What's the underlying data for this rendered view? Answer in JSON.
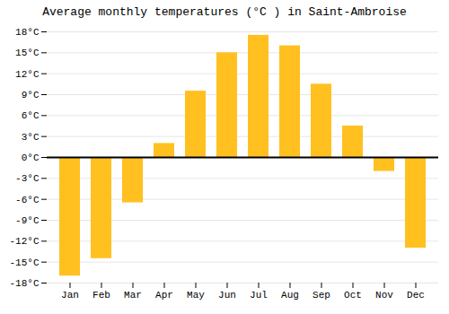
{
  "chart_data": {
    "type": "bar",
    "title": "Average monthly temperatures (°C ) in Saint-Ambroise",
    "categories": [
      "Jan",
      "Feb",
      "Mar",
      "Apr",
      "May",
      "Jun",
      "Jul",
      "Aug",
      "Sep",
      "Oct",
      "Nov",
      "Dec"
    ],
    "values": [
      -17,
      -14.5,
      -6.5,
      2,
      9.5,
      15,
      17.5,
      16,
      10.5,
      4.5,
      -2,
      -13
    ],
    "color": "#FFC020",
    "ylim": [
      -18,
      18
    ],
    "yticks": [
      {
        "value": -18,
        "label": "-18°C"
      },
      {
        "value": -15,
        "label": "-15°C"
      },
      {
        "value": -12,
        "label": "-12°C"
      },
      {
        "value": -9,
        "label": "-9°C"
      },
      {
        "value": -6,
        "label": "-6°C"
      },
      {
        "value": -3,
        "label": "-3°C"
      },
      {
        "value": 0,
        "label": "0°C"
      },
      {
        "value": 3,
        "label": "3°C"
      },
      {
        "value": 6,
        "label": "6°C"
      },
      {
        "value": 9,
        "label": "9°C"
      },
      {
        "value": 12,
        "label": "12°C"
      },
      {
        "value": 15,
        "label": "15°C"
      },
      {
        "value": 18,
        "label": "18°C"
      }
    ],
    "grid": true
  }
}
